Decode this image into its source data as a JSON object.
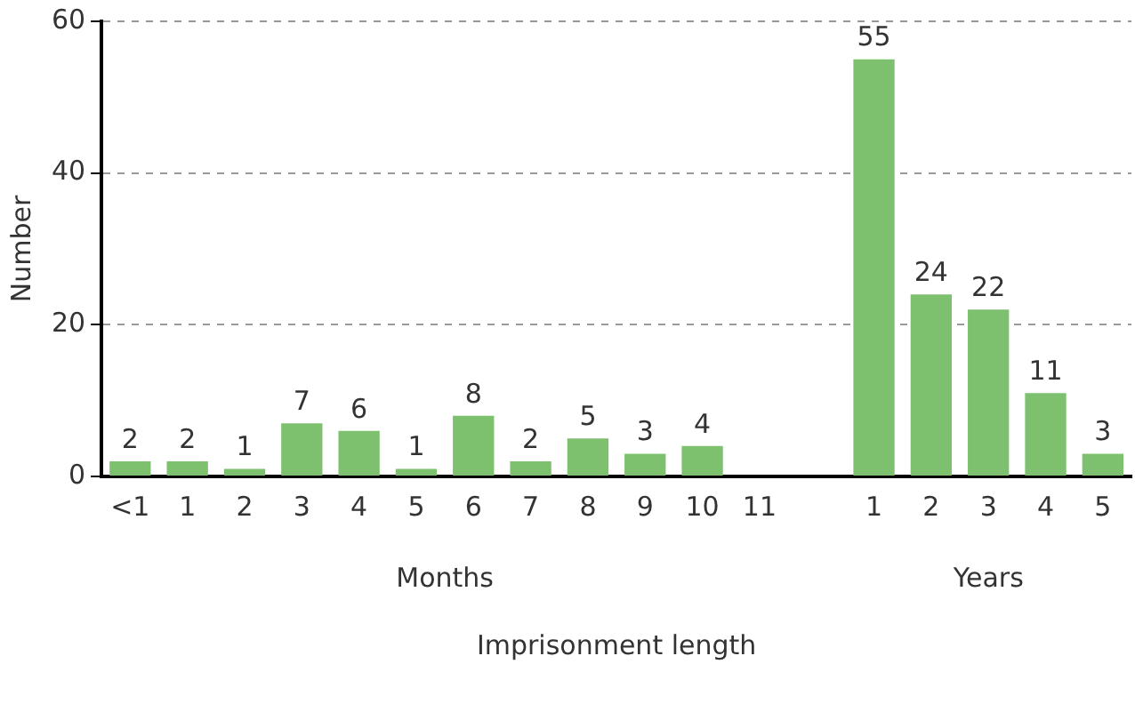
{
  "chart_data": {
    "type": "bar",
    "xlabel": "Imprisonment length",
    "ylabel": "Number",
    "categories": [
      "<1",
      "1",
      "2",
      "3",
      "4",
      "5",
      "6",
      "7",
      "8",
      "9",
      "10",
      "11",
      null,
      "1",
      "2",
      "3",
      "4",
      "5"
    ],
    "values": [
      2,
      2,
      1,
      7,
      6,
      1,
      8,
      2,
      5,
      3,
      4,
      null,
      null,
      55,
      24,
      22,
      11,
      3
    ],
    "color": "#7dc16e",
    "ylim": [
      0,
      60
    ],
    "yticks": [
      0,
      20,
      40,
      60
    ],
    "grid": "y",
    "legend": false,
    "data_labels": true,
    "annotations": [
      "Months",
      "Years"
    ]
  }
}
